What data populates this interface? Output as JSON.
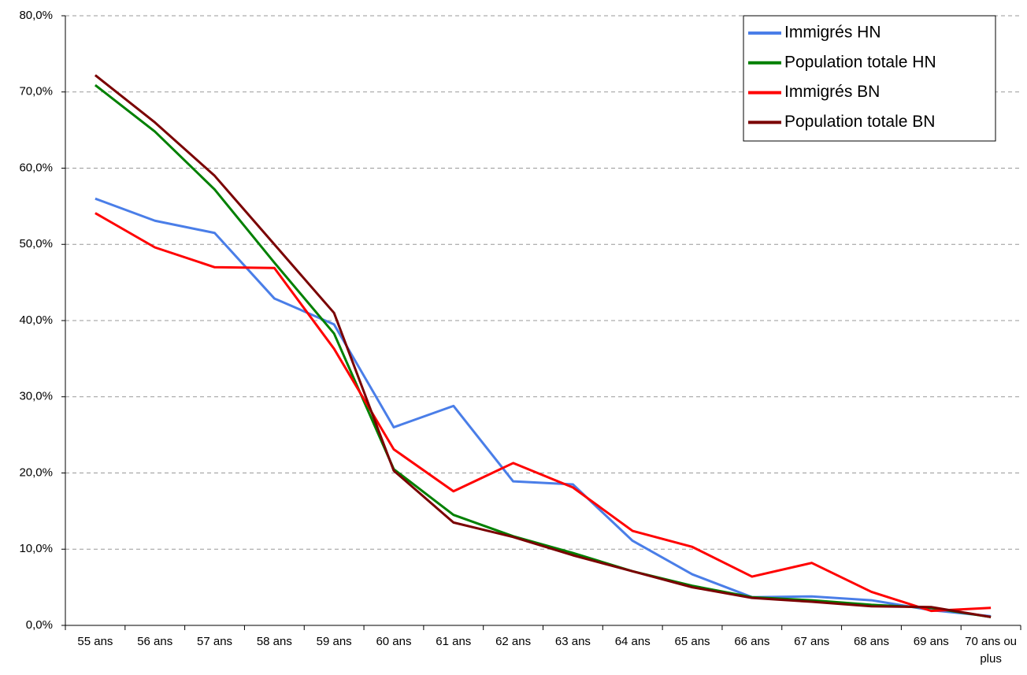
{
  "chart_data": {
    "type": "line",
    "categories": [
      "55 ans",
      "56 ans",
      "57 ans",
      "58 ans",
      "59 ans",
      "60 ans",
      "61 ans",
      "62 ans",
      "63 ans",
      "64 ans",
      "65 ans",
      "66 ans",
      "67 ans",
      "68 ans",
      "69 ans",
      "70 ans ou plus"
    ],
    "series": [
      {
        "name": "Immigrés HN",
        "color": "#4a7ee8",
        "values": [
          56.0,
          53.1,
          51.5,
          42.9,
          39.5,
          26.0,
          28.8,
          18.9,
          18.5,
          11.1,
          6.7,
          3.7,
          3.8,
          3.3,
          2.0,
          1.2
        ]
      },
      {
        "name": "Population totale HN",
        "color": "#008000",
        "values": [
          70.9,
          64.8,
          57.2,
          47.6,
          38.3,
          20.5,
          14.5,
          11.7,
          9.5,
          7.1,
          5.2,
          3.7,
          3.3,
          2.7,
          2.3,
          1.1
        ]
      },
      {
        "name": "Immigrés BN",
        "color": "#ff0000",
        "values": [
          54.1,
          49.6,
          47.0,
          46.9,
          36.3,
          23.1,
          17.6,
          21.3,
          18.1,
          12.4,
          10.3,
          6.4,
          8.2,
          4.4,
          1.9,
          2.3
        ]
      },
      {
        "name": "Population totale BN",
        "color": "#7a0000",
        "values": [
          72.2,
          66.0,
          59.0,
          50.0,
          41.0,
          20.3,
          13.5,
          11.6,
          9.2,
          7.1,
          5.0,
          3.6,
          3.1,
          2.5,
          2.4,
          1.1
        ]
      }
    ],
    "ylim": [
      0,
      80
    ],
    "yticks": [
      {
        "value": 0,
        "label": "0,0%"
      },
      {
        "value": 10,
        "label": "10,0%"
      },
      {
        "value": 20,
        "label": "20,0%"
      },
      {
        "value": 30,
        "label": "30,0%"
      },
      {
        "value": 40,
        "label": "40,0%"
      },
      {
        "value": 50,
        "label": "50,0%"
      },
      {
        "value": 60,
        "label": "60,0%"
      },
      {
        "value": 70,
        "label": "70,0%"
      },
      {
        "value": 80,
        "label": "80,0%"
      }
    ],
    "grid": true,
    "legend": "top-right"
  }
}
